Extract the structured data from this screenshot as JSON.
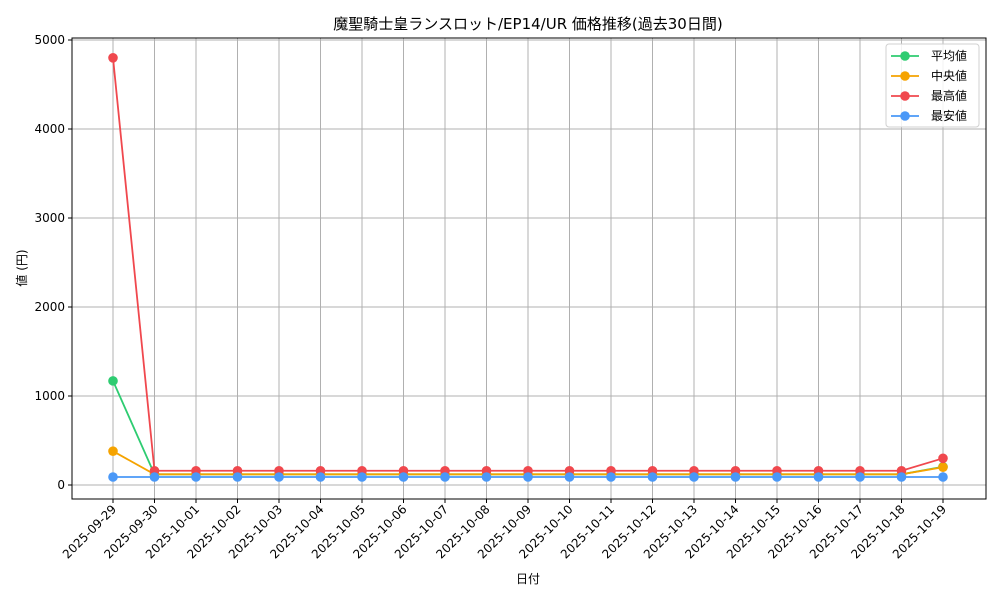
{
  "chart_data": {
    "type": "line",
    "title": "魔聖騎士皇ランスロット/EP14/UR 価格推移(過去30日間)",
    "xlabel": "日付",
    "ylabel": "値 (円)",
    "ylim": [
      0,
      5000
    ],
    "yticks": [
      0,
      1000,
      2000,
      3000,
      4000,
      5000
    ],
    "grid": true,
    "legend_position": "upper right",
    "categories": [
      "2025-09-29",
      "2025-09-30",
      "2025-10-01",
      "2025-10-02",
      "2025-10-03",
      "2025-10-04",
      "2025-10-05",
      "2025-10-06",
      "2025-10-07",
      "2025-10-08",
      "2025-10-09",
      "2025-10-10",
      "2025-10-11",
      "2025-10-12",
      "2025-10-13",
      "2025-10-14",
      "2025-10-15",
      "2025-10-16",
      "2025-10-17",
      "2025-10-18",
      "2025-10-19"
    ],
    "series": [
      {
        "name": "平均値",
        "color": "#2ecc71",
        "values": [
          1170,
          120,
          120,
          120,
          120,
          120,
          120,
          120,
          120,
          120,
          120,
          120,
          120,
          120,
          120,
          120,
          120,
          120,
          120,
          120,
          205
        ]
      },
      {
        "name": "中央値",
        "color": "#f5a300",
        "values": [
          380,
          120,
          120,
          120,
          120,
          120,
          120,
          120,
          120,
          120,
          120,
          120,
          120,
          120,
          120,
          120,
          120,
          120,
          120,
          120,
          200
        ]
      },
      {
        "name": "最高値",
        "color": "#f0484e",
        "values": [
          4800,
          160,
          160,
          160,
          160,
          160,
          160,
          160,
          160,
          160,
          160,
          160,
          160,
          160,
          160,
          160,
          160,
          160,
          160,
          160,
          300
        ]
      },
      {
        "name": "最安値",
        "color": "#4a98f7",
        "values": [
          90,
          90,
          90,
          90,
          90,
          90,
          90,
          90,
          90,
          90,
          90,
          90,
          90,
          90,
          90,
          90,
          90,
          90,
          90,
          90,
          90
        ]
      }
    ]
  }
}
